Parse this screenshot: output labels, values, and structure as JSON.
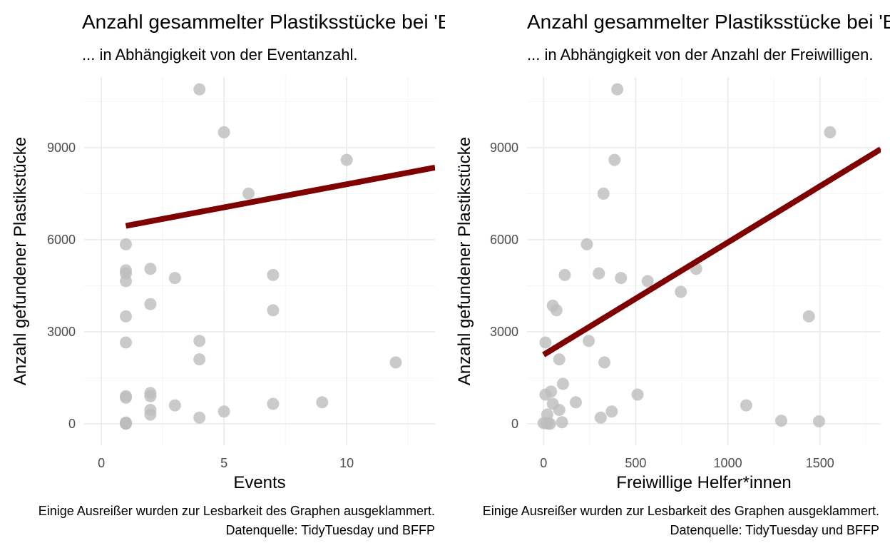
{
  "chart_data": [
    {
      "type": "scatter",
      "title": "Anzahl gesammelter Plastiksstücke bei 'Break Free From Plastic'",
      "subtitle": "... in Abhängigkeit von der Eventanzahl.",
      "xlabel": "Events",
      "ylabel": "Anzahl gefundener Plastikstücke",
      "xlim": [
        -0.7,
        13.6
      ],
      "ylim": [
        -700,
        11300
      ],
      "xticks": [
        0,
        5,
        10
      ],
      "yticks": [
        0,
        3000,
        6000,
        9000
      ],
      "grid": true,
      "point_color": "#bdbdbd",
      "line_color": "#7f0000",
      "points": [
        {
          "x": 1,
          "y": 5850
        },
        {
          "x": 1,
          "y": 5000
        },
        {
          "x": 1,
          "y": 4900
        },
        {
          "x": 1,
          "y": 4650
        },
        {
          "x": 1,
          "y": 3500
        },
        {
          "x": 1,
          "y": 2650
        },
        {
          "x": 1,
          "y": 900
        },
        {
          "x": 1,
          "y": 850
        },
        {
          "x": 1,
          "y": 40
        },
        {
          "x": 1,
          "y": 20
        },
        {
          "x": 1,
          "y": 10
        },
        {
          "x": 1,
          "y": 0
        },
        {
          "x": 2,
          "y": 5050
        },
        {
          "x": 2,
          "y": 3900
        },
        {
          "x": 2,
          "y": 1000
        },
        {
          "x": 2,
          "y": 900
        },
        {
          "x": 2,
          "y": 450
        },
        {
          "x": 2,
          "y": 300
        },
        {
          "x": 3,
          "y": 4750
        },
        {
          "x": 3,
          "y": 600
        },
        {
          "x": 4,
          "y": 10900
        },
        {
          "x": 4,
          "y": 2700
        },
        {
          "x": 4,
          "y": 2100
        },
        {
          "x": 4,
          "y": 200
        },
        {
          "x": 5,
          "y": 9500
        },
        {
          "x": 5,
          "y": 400
        },
        {
          "x": 6,
          "y": 7500
        },
        {
          "x": 7,
          "y": 4850
        },
        {
          "x": 7,
          "y": 3700
        },
        {
          "x": 7,
          "y": 650
        },
        {
          "x": 9,
          "y": 700
        },
        {
          "x": 10,
          "y": 8600
        },
        {
          "x": 12,
          "y": 2000
        }
      ],
      "trend_line": {
        "x": [
          1,
          13.6
        ],
        "y": [
          6450,
          8350
        ]
      },
      "caption": [
        "Einige Ausreißer wurden zur Lesbarkeit des Graphen ausgeklammert.",
        "Datenquelle: TidyTuesday und BFFP"
      ]
    },
    {
      "type": "scatter",
      "title": "Anzahl gesammelter Plastiksstücke bei 'Break Free From Plastic'",
      "subtitle": "... in Abhängigkeit von der Anzahl der Freiwilligen.",
      "xlabel": "Freiwillige Helfer*innen",
      "ylabel": "Anzahl gefundener Plastikstücke",
      "xlim": [
        -90,
        1830
      ],
      "ylim": [
        -700,
        11300
      ],
      "xticks": [
        0,
        500,
        1000,
        1500
      ],
      "yticks": [
        0,
        3000,
        6000,
        9000
      ],
      "grid": true,
      "point_color": "#bdbdbd",
      "line_color": "#7f0000",
      "points": [
        {
          "x": 400,
          "y": 10900
        },
        {
          "x": 1555,
          "y": 9500
        },
        {
          "x": 385,
          "y": 8600
        },
        {
          "x": 325,
          "y": 7500
        },
        {
          "x": 235,
          "y": 5850
        },
        {
          "x": 828,
          "y": 5050
        },
        {
          "x": 300,
          "y": 4900
        },
        {
          "x": 115,
          "y": 4850
        },
        {
          "x": 420,
          "y": 4750
        },
        {
          "x": 565,
          "y": 4650
        },
        {
          "x": 745,
          "y": 4300
        },
        {
          "x": 50,
          "y": 3850
        },
        {
          "x": 70,
          "y": 3700
        },
        {
          "x": 1440,
          "y": 3500
        },
        {
          "x": 10,
          "y": 2650
        },
        {
          "x": 245,
          "y": 2700
        },
        {
          "x": 85,
          "y": 2100
        },
        {
          "x": 330,
          "y": 2000
        },
        {
          "x": 105,
          "y": 1300
        },
        {
          "x": 40,
          "y": 1050
        },
        {
          "x": 10,
          "y": 950
        },
        {
          "x": 510,
          "y": 950
        },
        {
          "x": 175,
          "y": 700
        },
        {
          "x": 50,
          "y": 650
        },
        {
          "x": 1100,
          "y": 600
        },
        {
          "x": 85,
          "y": 450
        },
        {
          "x": 370,
          "y": 400
        },
        {
          "x": 20,
          "y": 300
        },
        {
          "x": 310,
          "y": 200
        },
        {
          "x": 1290,
          "y": 100
        },
        {
          "x": 1495,
          "y": 80
        },
        {
          "x": 100,
          "y": 50
        },
        {
          "x": 0,
          "y": 20
        },
        {
          "x": 15,
          "y": 20
        },
        {
          "x": 25,
          "y": 10
        },
        {
          "x": 35,
          "y": 0
        }
      ],
      "trend_line": {
        "x": [
          0,
          1830
        ],
        "y": [
          2250,
          8950
        ]
      },
      "caption": [
        "Einige Ausreißer wurden zur Lesbarkeit des Graphen ausgeklammert.",
        "Datenquelle: TidyTuesday und BFFP"
      ]
    }
  ]
}
